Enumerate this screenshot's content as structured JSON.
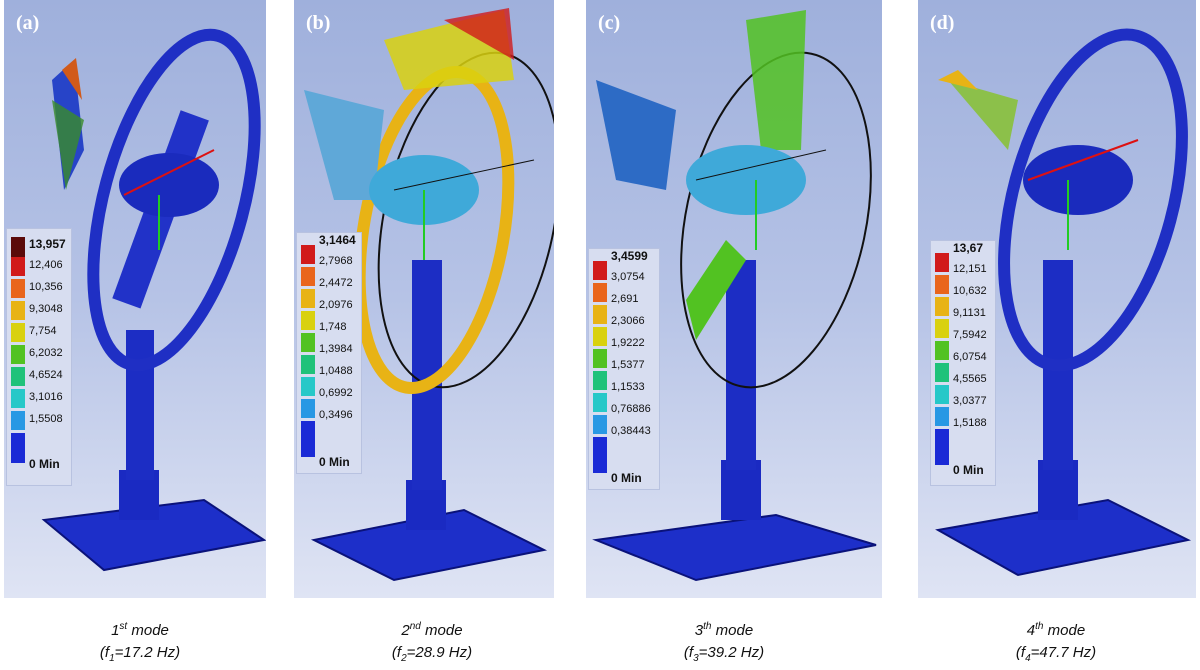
{
  "panels": [
    {
      "label": "(a)",
      "legend": [
        "13,957",
        "12,406",
        "10,356",
        "9,3048",
        "7,754",
        "6,2032",
        "4,6524",
        "3,1016",
        "1,5508",
        "0 Min"
      ]
    },
    {
      "label": "(b)",
      "legend": [
        "3,1464",
        "2,7968",
        "2,4472",
        "2,0976",
        "1,748",
        "1,3984",
        "1,0488",
        "0,6992",
        "0,3496",
        "0 Min"
      ]
    },
    {
      "label": "(c)",
      "legend": [
        "3,4599",
        "3,0754",
        "2,691",
        "2,3066",
        "1,9222",
        "1,5377",
        "1,1533",
        "0,76886",
        "0,38443",
        "0 Min"
      ]
    },
    {
      "label": "(d)",
      "legend": [
        "13,67",
        "12,151",
        "10,632",
        "9,1131",
        "7,5942",
        "6,0754",
        "4,5565",
        "3,0377",
        "1,5188",
        "0 Min"
      ]
    }
  ],
  "legend_colors": [
    "#d11a1a",
    "#e9651c",
    "#e8b315",
    "#d9d10f",
    "#52c222",
    "#1fc27a",
    "#26c8c8",
    "#2898e4",
    "#1a2ad6"
  ],
  "captions": [
    {
      "ordinal": "1",
      "suffix": "st",
      "word": "mode",
      "f": "f",
      "sub": "1",
      "value": "=17.2 Hz)"
    },
    {
      "ordinal": "2",
      "suffix": "nd",
      "word": "mode",
      "f": "f",
      "sub": "2",
      "value": "=28.9 Hz)"
    },
    {
      "ordinal": "3",
      "suffix": "th",
      "word": "mode",
      "f": "f",
      "sub": "3",
      "value": "=39.2 Hz)"
    },
    {
      "ordinal": "4",
      "suffix": "th",
      "word": "mode",
      "f": "f",
      "sub": "4",
      "value": "=47.7 Hz)"
    }
  ]
}
